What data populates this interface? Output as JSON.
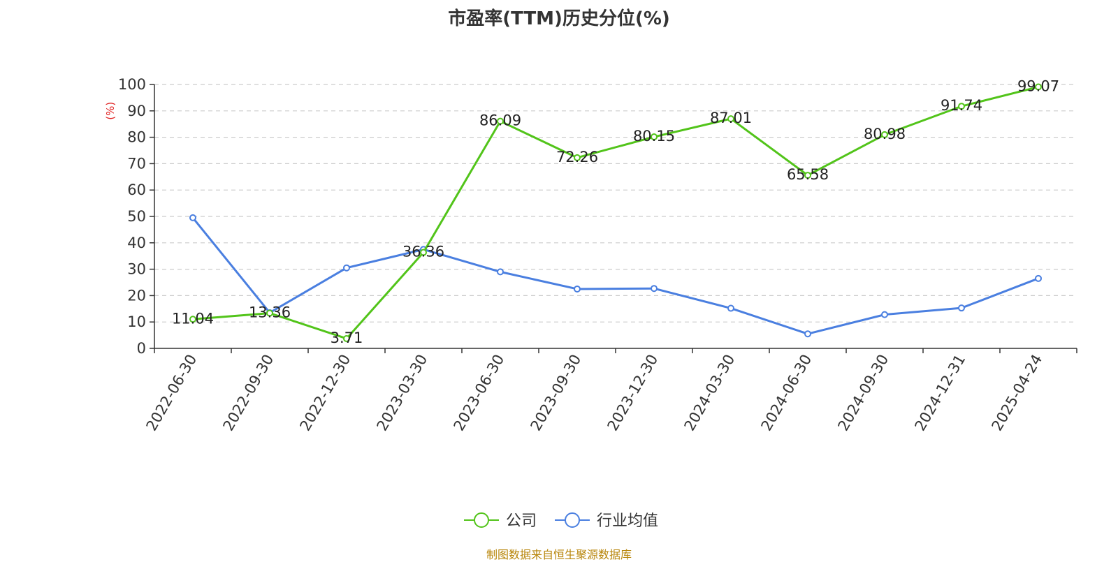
{
  "chart_data": {
    "type": "line",
    "title": "市盈率(TTM)历史分位(%)",
    "ylabel": "(%)",
    "ylim": [
      0,
      100
    ],
    "yticks": [
      0,
      10,
      20,
      30,
      40,
      50,
      60,
      70,
      80,
      90,
      100
    ],
    "grid": true,
    "legend_position": "bottom-center",
    "categories": [
      "2022-06-30",
      "2022-09-30",
      "2022-12-30",
      "2023-03-30",
      "2023-06-30",
      "2023-09-30",
      "2023-12-30",
      "2024-03-30",
      "2024-06-30",
      "2024-09-30",
      "2024-12-31",
      "2025-04-24"
    ],
    "series": [
      {
        "name": "公司",
        "color": "#52c41a",
        "show_labels": true,
        "values": [
          11.04,
          13.36,
          3.71,
          36.36,
          86.09,
          72.26,
          80.15,
          87.01,
          65.58,
          80.98,
          91.74,
          99.07
        ],
        "labels": [
          "11.04",
          "13.36",
          "3.71",
          "36.36",
          "86.09",
          "72.26",
          "80.15",
          "87.01",
          "65.58",
          "80.98",
          "91.74",
          "99.07"
        ]
      },
      {
        "name": "行业均值",
        "color": "#4a7fe0",
        "show_labels": false,
        "values": [
          49.5,
          13.5,
          30.5,
          37.5,
          29.0,
          22.5,
          22.7,
          15.2,
          5.5,
          12.8,
          15.3,
          26.5
        ]
      }
    ]
  },
  "source": "制图数据来自恒生聚源数据库"
}
